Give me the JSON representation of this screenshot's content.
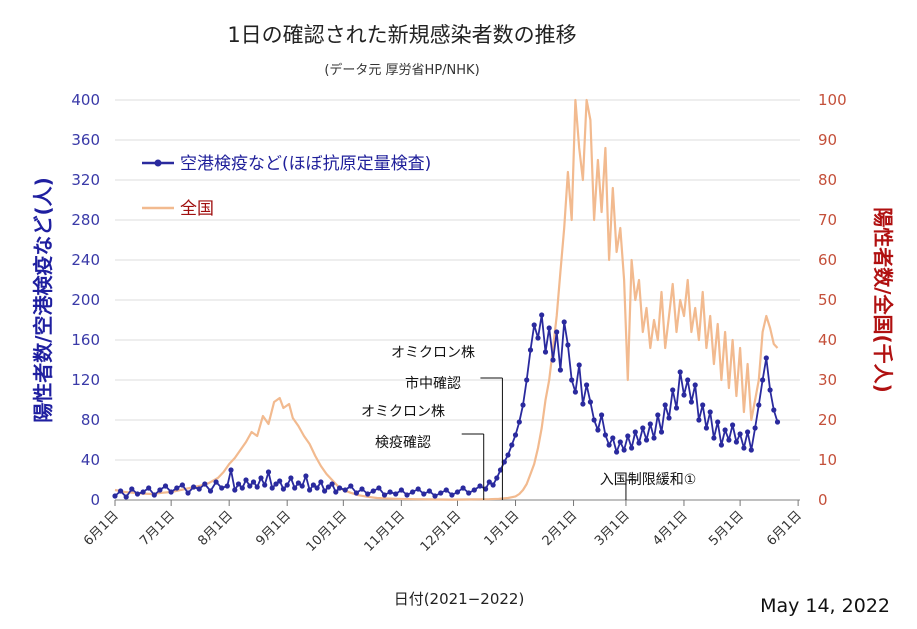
{
  "chart_data": {
    "type": "line",
    "title": "1日の確認された新規感染者数の推移",
    "subtitle": "(データ元 厚労省HP/NHK)",
    "xlabel": "日付(2021−2022)",
    "ylabel_left": "陽性者数/空港検疫など(人)",
    "ylabel_right": "陽性者数/全国(千人)",
    "ylim_left": [
      0,
      400
    ],
    "ylim_right": [
      0,
      100
    ],
    "yticks_left": [
      "0",
      "40",
      "80",
      "120",
      "160",
      "200",
      "240",
      "280",
      "320",
      "360",
      "400"
    ],
    "yticks_right": [
      "0",
      "10",
      "20",
      "30",
      "40",
      "50",
      "60",
      "70",
      "80",
      "90",
      "100"
    ],
    "grid": true,
    "legend_position": "top-left",
    "x_range_days": [
      0,
      366
    ],
    "x_ticks": [
      {
        "label": "6月1日",
        "day": 0
      },
      {
        "label": "7月1日",
        "day": 30
      },
      {
        "label": "8月1日",
        "day": 61
      },
      {
        "label": "9月1日",
        "day": 92
      },
      {
        "label": "10月1日",
        "day": 122
      },
      {
        "label": "11月1日",
        "day": 153
      },
      {
        "label": "12月1日",
        "day": 183
      },
      {
        "label": "1月1日",
        "day": 214
      },
      {
        "label": "2月1日",
        "day": 245
      },
      {
        "label": "3月1日",
        "day": 273
      },
      {
        "label": "4月1日",
        "day": 304
      },
      {
        "label": "5月1日",
        "day": 334
      },
      {
        "label": "6月1日",
        "day": 365
      }
    ],
    "series": [
      {
        "name": "空港検疫など(ほぼ抗原定量検査)",
        "axis": "left",
        "color": "#2a2a9e",
        "marker": "circle",
        "points": [
          [
            0,
            4
          ],
          [
            3,
            9
          ],
          [
            6,
            3
          ],
          [
            9,
            11
          ],
          [
            12,
            6
          ],
          [
            15,
            8
          ],
          [
            18,
            12
          ],
          [
            21,
            5
          ],
          [
            24,
            10
          ],
          [
            27,
            14
          ],
          [
            30,
            8
          ],
          [
            33,
            12
          ],
          [
            36,
            15
          ],
          [
            39,
            7
          ],
          [
            42,
            13
          ],
          [
            45,
            11
          ],
          [
            48,
            16
          ],
          [
            51,
            9
          ],
          [
            54,
            18
          ],
          [
            57,
            12
          ],
          [
            60,
            14
          ],
          [
            62,
            30
          ],
          [
            64,
            10
          ],
          [
            66,
            16
          ],
          [
            68,
            12
          ],
          [
            70,
            20
          ],
          [
            72,
            14
          ],
          [
            74,
            18
          ],
          [
            76,
            13
          ],
          [
            78,
            22
          ],
          [
            80,
            15
          ],
          [
            82,
            28
          ],
          [
            84,
            12
          ],
          [
            86,
            16
          ],
          [
            88,
            19
          ],
          [
            90,
            11
          ],
          [
            92,
            15
          ],
          [
            94,
            22
          ],
          [
            96,
            12
          ],
          [
            98,
            17
          ],
          [
            100,
            14
          ],
          [
            102,
            24
          ],
          [
            104,
            10
          ],
          [
            106,
            15
          ],
          [
            108,
            12
          ],
          [
            110,
            18
          ],
          [
            112,
            9
          ],
          [
            114,
            13
          ],
          [
            116,
            16
          ],
          [
            118,
            8
          ],
          [
            120,
            12
          ],
          [
            123,
            10
          ],
          [
            126,
            14
          ],
          [
            129,
            7
          ],
          [
            132,
            11
          ],
          [
            135,
            6
          ],
          [
            138,
            9
          ],
          [
            141,
            12
          ],
          [
            144,
            5
          ],
          [
            147,
            8
          ],
          [
            150,
            6
          ],
          [
            153,
            10
          ],
          [
            156,
            5
          ],
          [
            159,
            8
          ],
          [
            162,
            11
          ],
          [
            165,
            6
          ],
          [
            168,
            9
          ],
          [
            171,
            4
          ],
          [
            174,
            7
          ],
          [
            177,
            10
          ],
          [
            180,
            5
          ],
          [
            183,
            8
          ],
          [
            186,
            12
          ],
          [
            189,
            7
          ],
          [
            192,
            10
          ],
          [
            195,
            14
          ],
          [
            198,
            11
          ],
          [
            200,
            18
          ],
          [
            202,
            15
          ],
          [
            204,
            22
          ],
          [
            206,
            30
          ],
          [
            208,
            38
          ],
          [
            210,
            45
          ],
          [
            212,
            55
          ],
          [
            214,
            65
          ],
          [
            216,
            78
          ],
          [
            218,
            95
          ],
          [
            220,
            120
          ],
          [
            222,
            150
          ],
          [
            224,
            175
          ],
          [
            226,
            162
          ],
          [
            228,
            185
          ],
          [
            230,
            148
          ],
          [
            232,
            172
          ],
          [
            234,
            140
          ],
          [
            236,
            168
          ],
          [
            238,
            130
          ],
          [
            240,
            178
          ],
          [
            242,
            155
          ],
          [
            244,
            120
          ],
          [
            246,
            108
          ],
          [
            248,
            135
          ],
          [
            250,
            96
          ],
          [
            252,
            115
          ],
          [
            254,
            98
          ],
          [
            256,
            80
          ],
          [
            258,
            70
          ],
          [
            260,
            85
          ],
          [
            262,
            65
          ],
          [
            264,
            55
          ],
          [
            266,
            62
          ],
          [
            268,
            48
          ],
          [
            270,
            58
          ],
          [
            272,
            50
          ],
          [
            274,
            64
          ],
          [
            276,
            52
          ],
          [
            278,
            68
          ],
          [
            280,
            57
          ],
          [
            282,
            72
          ],
          [
            284,
            60
          ],
          [
            286,
            76
          ],
          [
            288,
            62
          ],
          [
            290,
            85
          ],
          [
            292,
            68
          ],
          [
            294,
            95
          ],
          [
            296,
            82
          ],
          [
            298,
            110
          ],
          [
            300,
            92
          ],
          [
            302,
            128
          ],
          [
            304,
            105
          ],
          [
            306,
            120
          ],
          [
            308,
            98
          ],
          [
            310,
            115
          ],
          [
            312,
            80
          ],
          [
            314,
            95
          ],
          [
            316,
            72
          ],
          [
            318,
            88
          ],
          [
            320,
            62
          ],
          [
            322,
            78
          ],
          [
            324,
            55
          ],
          [
            326,
            70
          ],
          [
            328,
            60
          ],
          [
            330,
            75
          ],
          [
            332,
            58
          ],
          [
            334,
            66
          ],
          [
            336,
            52
          ],
          [
            338,
            68
          ],
          [
            340,
            50
          ],
          [
            342,
            72
          ],
          [
            344,
            95
          ],
          [
            346,
            120
          ],
          [
            348,
            142
          ],
          [
            350,
            110
          ],
          [
            352,
            90
          ],
          [
            354,
            78
          ]
        ]
      },
      {
        "name": "全国",
        "axis": "right",
        "color": "#f2ba8f",
        "points": [
          [
            0,
            2.5
          ],
          [
            5,
            2.0
          ],
          [
            10,
            1.8
          ],
          [
            15,
            1.6
          ],
          [
            20,
            1.5
          ],
          [
            25,
            1.8
          ],
          [
            30,
            2.0
          ],
          [
            35,
            2.5
          ],
          [
            40,
            3.0
          ],
          [
            45,
            3.5
          ],
          [
            50,
            4.2
          ],
          [
            55,
            5.5
          ],
          [
            58,
            7.0
          ],
          [
            61,
            9.0
          ],
          [
            64,
            10.5
          ],
          [
            67,
            12.5
          ],
          [
            70,
            14.5
          ],
          [
            73,
            17.0
          ],
          [
            76,
            16.0
          ],
          [
            79,
            21.0
          ],
          [
            82,
            19.0
          ],
          [
            85,
            24.5
          ],
          [
            88,
            25.5
          ],
          [
            90,
            23.0
          ],
          [
            93,
            24.0
          ],
          [
            95,
            20.5
          ],
          [
            98,
            18.5
          ],
          [
            101,
            16.0
          ],
          [
            104,
            14.0
          ],
          [
            107,
            11.0
          ],
          [
            110,
            8.5
          ],
          [
            113,
            6.5
          ],
          [
            116,
            5.0
          ],
          [
            119,
            3.5
          ],
          [
            122,
            2.5
          ],
          [
            126,
            1.8
          ],
          [
            130,
            1.2
          ],
          [
            135,
            0.8
          ],
          [
            140,
            0.5
          ],
          [
            150,
            0.3
          ],
          [
            160,
            0.2
          ],
          [
            170,
            0.15
          ],
          [
            180,
            0.1
          ],
          [
            190,
            0.15
          ],
          [
            200,
            0.2
          ],
          [
            205,
            0.3
          ],
          [
            210,
            0.5
          ],
          [
            214,
            0.9
          ],
          [
            216,
            1.5
          ],
          [
            218,
            2.5
          ],
          [
            220,
            4.0
          ],
          [
            222,
            6.5
          ],
          [
            224,
            9.0
          ],
          [
            226,
            13.0
          ],
          [
            228,
            18.0
          ],
          [
            230,
            25.0
          ],
          [
            232,
            30.0
          ],
          [
            234,
            38.0
          ],
          [
            236,
            46.0
          ],
          [
            238,
            57.0
          ],
          [
            240,
            68.0
          ],
          [
            242,
            82.0
          ],
          [
            244,
            70.0
          ],
          [
            246,
            100.0
          ],
          [
            248,
            88.0
          ],
          [
            250,
            80.0
          ],
          [
            252,
            102.0
          ],
          [
            254,
            95.0
          ],
          [
            256,
            70.0
          ],
          [
            258,
            85.0
          ],
          [
            260,
            72.0
          ],
          [
            262,
            88.0
          ],
          [
            264,
            60.0
          ],
          [
            266,
            78.0
          ],
          [
            268,
            62.0
          ],
          [
            270,
            68.0
          ],
          [
            272,
            55.0
          ],
          [
            274,
            30.0
          ],
          [
            276,
            60.0
          ],
          [
            278,
            50.0
          ],
          [
            280,
            55.0
          ],
          [
            282,
            42.0
          ],
          [
            284,
            48.0
          ],
          [
            286,
            38.0
          ],
          [
            288,
            45.0
          ],
          [
            290,
            40.0
          ],
          [
            292,
            52.0
          ],
          [
            294,
            38.0
          ],
          [
            296,
            46.0
          ],
          [
            298,
            54.0
          ],
          [
            300,
            42.0
          ],
          [
            302,
            50.0
          ],
          [
            304,
            46.0
          ],
          [
            306,
            55.0
          ],
          [
            308,
            42.0
          ],
          [
            310,
            48.0
          ],
          [
            312,
            40.0
          ],
          [
            314,
            52.0
          ],
          [
            316,
            38.0
          ],
          [
            318,
            46.0
          ],
          [
            320,
            34.0
          ],
          [
            322,
            44.0
          ],
          [
            324,
            30.0
          ],
          [
            326,
            42.0
          ],
          [
            328,
            28.0
          ],
          [
            330,
            40.0
          ],
          [
            332,
            26.0
          ],
          [
            334,
            38.0
          ],
          [
            336,
            22.0
          ],
          [
            338,
            34.0
          ],
          [
            340,
            20.0
          ],
          [
            342,
            25.0
          ],
          [
            344,
            30.0
          ],
          [
            346,
            42.0
          ],
          [
            348,
            46.0
          ],
          [
            350,
            43.0
          ],
          [
            352,
            39.0
          ],
          [
            354,
            38.0
          ]
        ]
      }
    ],
    "annotations": [
      {
        "lines": [
          "オミクロン株",
          "市中確認"
        ],
        "day": 207
      },
      {
        "lines": [
          "オミクロン株",
          "検疫確認"
        ],
        "day": 197
      },
      {
        "lines": [
          "入国制限緩和①"
        ],
        "day": 273
      }
    ],
    "date_stamp": "May 14, 2022"
  }
}
